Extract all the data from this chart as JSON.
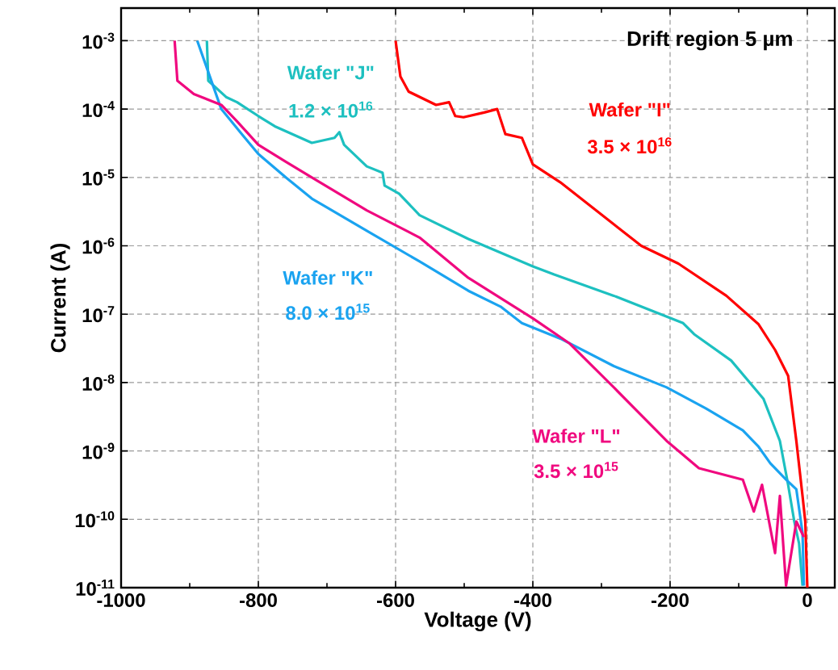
{
  "chart_data": {
    "type": "line",
    "title": "Drift region 5 µm",
    "xlabel": "Voltage (V)",
    "ylabel": "Current (A)",
    "log": "y",
    "grid": true,
    "line_style": "solid",
    "xlim": [
      -1000,
      40
    ],
    "xticks": [
      -1000,
      -800,
      -600,
      -400,
      -200,
      0
    ],
    "ylim": [
      1e-11,
      0.003
    ],
    "yticks": [
      {
        "value": 0.001,
        "label": "10$^{-3}$"
      },
      {
        "value": 0.0001,
        "label": "10$^{-4}$"
      },
      {
        "value": 1e-05,
        "label": "10$^{-5}$"
      },
      {
        "value": 1e-06,
        "label": "10$^{-6}$"
      },
      {
        "value": 1e-07,
        "label": "10$^{-7}$"
      },
      {
        "value": 1e-08,
        "label": "10$^{-8}$"
      },
      {
        "value": 1e-09,
        "label": "10$^{-9}$"
      },
      {
        "value": 1e-10,
        "label": "10$^{-10}$"
      },
      {
        "value": 1e-11,
        "label": "10$^{-11}$"
      }
    ],
    "annotations": [
      "3.5 × 10$^{16}$",
      "1.2 × 10$^{16}$",
      "8.0 × 10$^{15}$",
      "3.5 × 10$^{15}$"
    ],
    "series": [
      {
        "name": "Wafer \"I\"",
        "color": "#ff0000",
        "x": [
          -600,
          -593,
          -581,
          -541,
          -522,
          -513,
          -501,
          -471,
          -452,
          -440,
          -416,
          -400,
          -360,
          -242,
          -188,
          -118,
          -71,
          -47,
          -28,
          -16,
          -7,
          -3,
          0
        ],
        "values": [
          0.001,
          0.0003,
          0.00018,
          0.000115,
          0.000126,
          7.9e-05,
          7.6e-05,
          8.9e-05,
          0.0001,
          4.3e-05,
          3.8e-05,
          1.55e-05,
          8.5e-06,
          1e-06,
          5.5e-07,
          1.86e-07,
          7.1e-08,
          3e-08,
          1.26e-08,
          1.4e-09,
          2.2e-10,
          9.3e-11,
          1e-11
        ]
      },
      {
        "name": "Wafer \"J\"",
        "color": "#1dc0c0",
        "x": [
          -875,
          -873,
          -847,
          -831,
          -800,
          -776,
          -722,
          -689,
          -682,
          -675,
          -642,
          -619,
          -616,
          -595,
          -565,
          -494,
          -400,
          -369,
          -282,
          -181,
          -165,
          -111,
          -64,
          -40,
          -28,
          -19,
          -12,
          -7
        ],
        "values": [
          0.001,
          0.00026,
          0.00015,
          0.000126,
          7.9e-05,
          5.6e-05,
          3.2e-05,
          3.8e-05,
          4.6e-05,
          3e-05,
          1.45e-05,
          1.17e-05,
          7.6e-06,
          5.8e-06,
          2.8e-06,
          1.26e-06,
          5e-07,
          3.8e-07,
          1.86e-07,
          7.4e-08,
          5.1e-08,
          2.1e-08,
          5.8e-09,
          1.4e-09,
          3.2e-10,
          9.3e-11,
          4.4e-11,
          1.07e-11
        ]
      },
      {
        "name": "Wafer \"K\"",
        "color": "#1aa3f0",
        "x": [
          -889,
          -854,
          -824,
          -800,
          -760,
          -722,
          -642,
          -565,
          -494,
          -447,
          -416,
          -360,
          -282,
          -205,
          -148,
          -94,
          -71,
          -54,
          -31,
          -16,
          -7,
          -5
        ],
        "values": [
          0.001,
          0.0001,
          4.3e-05,
          2.2e-05,
          1e-05,
          4.9e-06,
          1.66e-06,
          5.9e-07,
          2.2e-07,
          1.29e-07,
          7.4e-08,
          4.4e-08,
          1.74e-08,
          8.5e-09,
          4.2e-09,
          2e-09,
          1.15e-09,
          6.6e-10,
          3.8e-10,
          2.75e-10,
          6.3e-11,
          1.07e-11
        ]
      },
      {
        "name": "Wafer \"L\"",
        "color": "#f0097f",
        "x": [
          -922,
          -918,
          -894,
          -854,
          -831,
          -800,
          -760,
          -722,
          -642,
          -565,
          -494,
          -400,
          -346,
          -282,
          -205,
          -158,
          -94,
          -78,
          -66,
          -47,
          -40,
          -31,
          -16,
          -5
        ],
        "values": [
          0.001,
          0.00026,
          0.000166,
          0.000115,
          6.6e-05,
          3e-05,
          1.7e-05,
          1e-05,
          3.3e-06,
          1.32e-06,
          3.4e-07,
          8.7e-08,
          3.7e-08,
          8.5e-09,
          1.4e-09,
          5.6e-10,
          3.8e-10,
          1.3e-10,
          3.2e-10,
          3.2e-11,
          2.2e-10,
          1.07e-11,
          9.3e-11,
          5.5e-11
        ]
      }
    ]
  }
}
